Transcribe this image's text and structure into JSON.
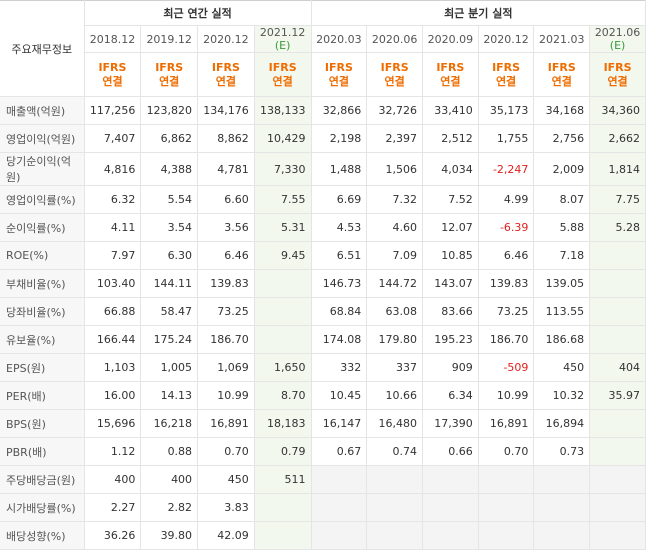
{
  "header": {
    "label": "주요재무정보",
    "annual_title": "최근 연간 실적",
    "quarter_title": "최근 분기 실적",
    "periods": [
      {
        "label": "2018.12",
        "tag": "",
        "estimate": false
      },
      {
        "label": "2019.12",
        "tag": "",
        "estimate": false
      },
      {
        "label": "2020.12",
        "tag": "",
        "estimate": false
      },
      {
        "label": "2021.12",
        "tag": "(E)",
        "estimate": true
      },
      {
        "label": "2020.03",
        "tag": "",
        "estimate": false
      },
      {
        "label": "2020.06",
        "tag": "",
        "estimate": false
      },
      {
        "label": "2020.09",
        "tag": "",
        "estimate": false
      },
      {
        "label": "2020.12",
        "tag": "",
        "estimate": false
      },
      {
        "label": "2021.03",
        "tag": "",
        "estimate": false
      },
      {
        "label": "2021.06",
        "tag": "(E)",
        "estimate": true
      }
    ],
    "ifrs_line1": "IFRS",
    "ifrs_line2": "연결"
  },
  "groups": [
    {
      "rows": [
        {
          "label": "매출액(억원)",
          "values": [
            "117,256",
            "123,820",
            "134,176",
            "138,133",
            "32,866",
            "32,726",
            "33,410",
            "35,173",
            "34,168",
            "34,360"
          ],
          "negative": []
        },
        {
          "label": "영업이익(억원)",
          "values": [
            "7,407",
            "6,862",
            "8,862",
            "10,429",
            "2,198",
            "2,397",
            "2,512",
            "1,755",
            "2,756",
            "2,662"
          ],
          "negative": []
        },
        {
          "label": "당기순이익(억원)",
          "values": [
            "4,816",
            "4,388",
            "4,781",
            "7,330",
            "1,488",
            "1,506",
            "4,034",
            "-2,247",
            "2,009",
            "1,814"
          ],
          "negative": [
            7
          ]
        }
      ]
    },
    {
      "rows": [
        {
          "label": "영업이익률(%)",
          "values": [
            "6.32",
            "5.54",
            "6.60",
            "7.55",
            "6.69",
            "7.32",
            "7.52",
            "4.99",
            "8.07",
            "7.75"
          ],
          "negative": []
        },
        {
          "label": "순이익률(%)",
          "values": [
            "4.11",
            "3.54",
            "3.56",
            "5.31",
            "4.53",
            "4.60",
            "12.07",
            "-6.39",
            "5.88",
            "5.28"
          ],
          "negative": [
            7
          ]
        },
        {
          "label": "ROE(%)",
          "values": [
            "7.97",
            "6.30",
            "6.46",
            "9.45",
            "6.51",
            "7.09",
            "10.85",
            "6.46",
            "7.18",
            ""
          ],
          "negative": []
        }
      ]
    },
    {
      "rows": [
        {
          "label": "부채비율(%)",
          "values": [
            "103.40",
            "144.11",
            "139.83",
            "",
            "146.73",
            "144.72",
            "143.07",
            "139.83",
            "139.05",
            ""
          ],
          "negative": []
        },
        {
          "label": "당좌비율(%)",
          "values": [
            "66.88",
            "58.47",
            "73.25",
            "",
            "68.84",
            "63.08",
            "83.66",
            "73.25",
            "113.55",
            ""
          ],
          "negative": []
        },
        {
          "label": "유보율(%)",
          "values": [
            "166.44",
            "175.24",
            "186.70",
            "",
            "174.08",
            "179.80",
            "195.23",
            "186.70",
            "186.68",
            ""
          ],
          "negative": []
        }
      ]
    },
    {
      "rows": [
        {
          "label": "EPS(원)",
          "values": [
            "1,103",
            "1,005",
            "1,069",
            "1,650",
            "332",
            "337",
            "909",
            "-509",
            "450",
            "404"
          ],
          "negative": [
            7
          ]
        },
        {
          "label": "PER(배)",
          "values": [
            "16.00",
            "14.13",
            "10.99",
            "8.70",
            "10.45",
            "10.66",
            "6.34",
            "10.99",
            "10.32",
            "35.97"
          ],
          "negative": []
        },
        {
          "label": "BPS(원)",
          "values": [
            "15,696",
            "16,218",
            "16,891",
            "18,183",
            "16,147",
            "16,480",
            "17,390",
            "16,891",
            "16,894",
            ""
          ],
          "negative": []
        },
        {
          "label": "PBR(배)",
          "values": [
            "1.12",
            "0.88",
            "0.70",
            "0.79",
            "0.67",
            "0.74",
            "0.66",
            "0.70",
            "0.73",
            ""
          ],
          "negative": []
        }
      ]
    },
    {
      "rows": [
        {
          "label": "주당배당금(원)",
          "values": [
            "400",
            "400",
            "450",
            "511",
            "",
            "",
            "",
            "",
            "",
            ""
          ],
          "negative": []
        },
        {
          "label": "시가배당률(%)",
          "values": [
            "2.27",
            "2.82",
            "3.83",
            "",
            "",
            "",
            "",
            "",
            "",
            ""
          ],
          "negative": []
        },
        {
          "label": "배당성향(%)",
          "values": [
            "36.26",
            "39.80",
            "42.09",
            "",
            "",
            "",
            "",
            "",
            "",
            ""
          ],
          "negative": []
        }
      ]
    }
  ],
  "colors": {
    "estimate_bg": "#f3f8ef",
    "estimate_tag": "#3a9a3a",
    "ifrs": "#ef6c00",
    "negative": "#e02020",
    "empty": "#f4f4f4"
  }
}
